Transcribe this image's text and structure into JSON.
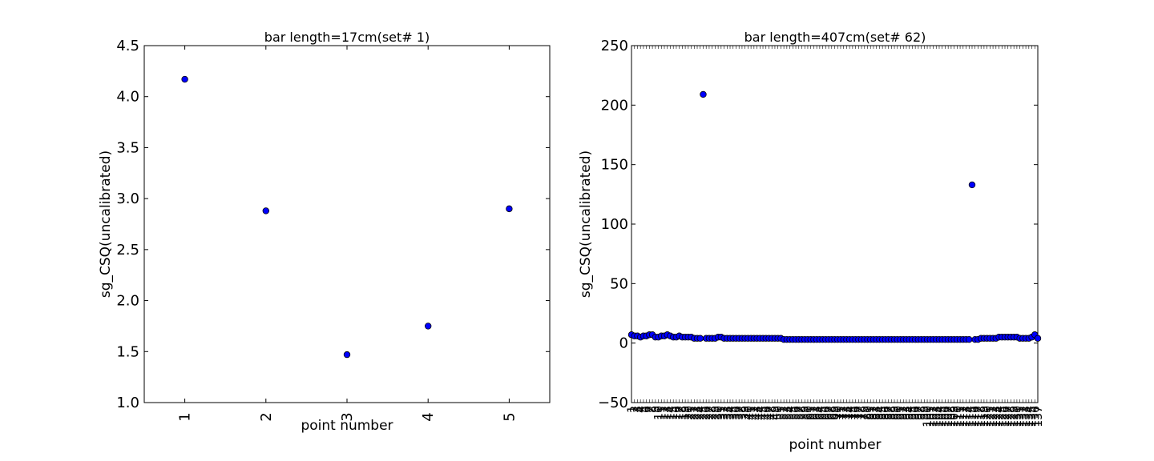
{
  "chart_data": [
    {
      "type": "scatter",
      "title": "bar length=17cm(set# 1)",
      "xlabel": "point number",
      "ylabel": "sg_CSQ(uncalibrated)",
      "xlim": [
        0.5,
        5.5
      ],
      "ylim": [
        1.0,
        4.5
      ],
      "xticks": [
        "1",
        "2",
        "3",
        "4",
        "5"
      ],
      "yticks": [
        "1.0",
        "1.5",
        "2.0",
        "2.5",
        "3.0",
        "3.5",
        "4.0",
        "4.5"
      ],
      "x": [
        1,
        2,
        3,
        4,
        5
      ],
      "y": [
        4.17,
        2.88,
        1.47,
        1.75,
        2.9
      ],
      "marker_color": "#0000ff",
      "grid": false
    },
    {
      "type": "scatter",
      "title": "bar length=407cm(set# 62)",
      "xlabel": "point number",
      "ylabel": "sg_CSQ(uncalibrated)",
      "xlim": [
        1,
        137
      ],
      "ylim": [
        -50,
        250
      ],
      "yticks": [
        "−50",
        "0",
        "50",
        "100",
        "150",
        "200",
        "250"
      ],
      "x": [
        1,
        2,
        3,
        4,
        5,
        6,
        7,
        8,
        9,
        10,
        11,
        12,
        13,
        14,
        15,
        16,
        17,
        18,
        19,
        20,
        21,
        22,
        23,
        24,
        25,
        26,
        27,
        28,
        29,
        30,
        31,
        32,
        33,
        34,
        35,
        36,
        37,
        38,
        39,
        40,
        41,
        42,
        43,
        44,
        45,
        46,
        47,
        48,
        49,
        50,
        51,
        52,
        53,
        54,
        55,
        56,
        57,
        58,
        59,
        60,
        61,
        62,
        63,
        64,
        65,
        66,
        67,
        68,
        69,
        70,
        71,
        72,
        73,
        74,
        75,
        76,
        77,
        78,
        79,
        80,
        81,
        82,
        83,
        84,
        85,
        86,
        87,
        88,
        89,
        90,
        91,
        92,
        93,
        94,
        95,
        96,
        97,
        98,
        99,
        100,
        101,
        102,
        103,
        104,
        105,
        106,
        107,
        108,
        109,
        110,
        111,
        112,
        113,
        114,
        115,
        116,
        117,
        118,
        119,
        120,
        121,
        122,
        123,
        124,
        125,
        126,
        127,
        128,
        129,
        130,
        131,
        132,
        133,
        134,
        135,
        136,
        137
      ],
      "y": [
        7,
        6,
        6,
        5,
        6,
        6,
        7,
        7,
        5,
        5,
        6,
        6,
        7,
        6,
        5,
        5,
        6,
        5,
        5,
        5,
        5,
        4,
        4,
        4,
        209,
        4,
        4,
        4,
        4,
        5,
        5,
        4,
        4,
        4,
        4,
        4,
        4,
        4,
        4,
        4,
        4,
        4,
        4,
        4,
        4,
        4,
        4,
        4,
        4,
        4,
        4,
        3,
        3,
        3,
        3,
        3,
        3,
        3,
        3,
        3,
        3,
        3,
        3,
        3,
        3,
        3,
        3,
        3,
        3,
        3,
        3,
        3,
        3,
        3,
        3,
        3,
        3,
        3,
        3,
        3,
        3,
        3,
        3,
        3,
        3,
        3,
        3,
        3,
        3,
        3,
        3,
        3,
        3,
        3,
        3,
        3,
        3,
        3,
        3,
        3,
        3,
        3,
        3,
        3,
        3,
        3,
        3,
        3,
        3,
        3,
        3,
        3,
        3,
        3,
        133,
        3,
        3,
        4,
        4,
        4,
        4,
        4,
        4,
        5,
        5,
        5,
        5,
        5,
        5,
        5,
        4,
        4,
        4,
        4,
        5,
        7,
        4
      ],
      "marker_color": "#0000ff",
      "grid": false
    }
  ]
}
